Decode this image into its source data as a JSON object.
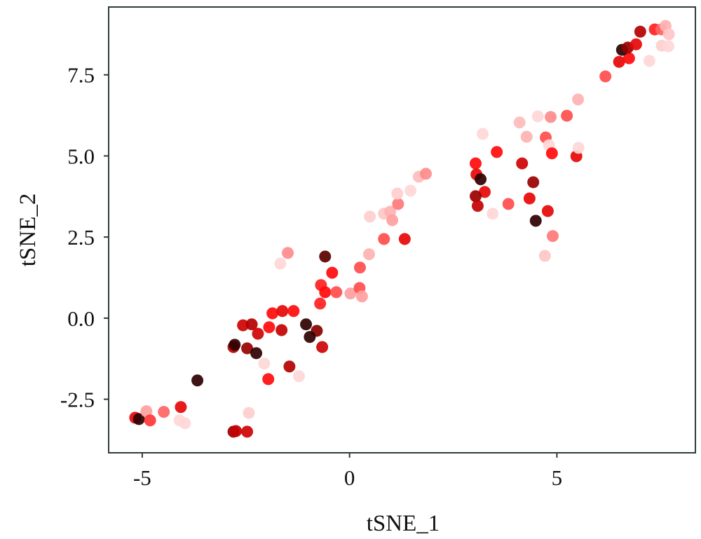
{
  "chart_data": {
    "type": "scatter",
    "title": "",
    "xlabel": "tSNE_1",
    "ylabel": "tSNE_2",
    "xlim": [
      -5.81,
      8.34
    ],
    "ylim": [
      -4.15,
      9.59
    ],
    "grid": false,
    "legend": "none",
    "colormap": "Reds",
    "xticks": [
      {
        "value": -5,
        "label": "-5"
      },
      {
        "value": 0,
        "label": "0"
      },
      {
        "value": 5,
        "label": "5"
      }
    ],
    "yticks": [
      {
        "value": -2.5,
        "label": "-2.5"
      },
      {
        "value": 0,
        "label": "0.0"
      },
      {
        "value": 2.5,
        "label": "2.5"
      },
      {
        "value": 5,
        "label": "5.0"
      },
      {
        "value": 7.5,
        "label": "7.5"
      }
    ],
    "points": [
      [
        -5.17,
        -3.07,
        0.75
      ],
      [
        -5.08,
        -3.11,
        1.0
      ],
      [
        -4.9,
        -2.87,
        0.35
      ],
      [
        -4.81,
        -3.15,
        0.6
      ],
      [
        -4.48,
        -2.89,
        0.5
      ],
      [
        -4.07,
        -2.74,
        0.75
      ],
      [
        -4.1,
        -3.15,
        0.1
      ],
      [
        -3.97,
        -3.24,
        0.1
      ],
      [
        -3.67,
        -1.92,
        1.0
      ],
      [
        -2.8,
        -3.5,
        0.88
      ],
      [
        -2.74,
        -3.48,
        0.82
      ],
      [
        -2.47,
        -3.5,
        0.8
      ],
      [
        -2.43,
        -2.92,
        0.15
      ],
      [
        -2.8,
        -0.89,
        0.85
      ],
      [
        -2.77,
        -0.82,
        1.0
      ],
      [
        -2.47,
        -0.93,
        0.88
      ],
      [
        -2.25,
        -1.08,
        1.0
      ],
      [
        -2.57,
        -0.22,
        0.8
      ],
      [
        -2.36,
        -0.19,
        0.85
      ],
      [
        -2.21,
        -0.48,
        0.8
      ],
      [
        -1.94,
        -0.28,
        0.7
      ],
      [
        -1.64,
        -0.37,
        0.82
      ],
      [
        -1.05,
        -0.19,
        1.0
      ],
      [
        -0.79,
        -0.39,
        0.9
      ],
      [
        -0.96,
        -0.58,
        1.0
      ],
      [
        -0.66,
        -0.89,
        0.8
      ],
      [
        -2.06,
        -1.4,
        0.1
      ],
      [
        -1.45,
        -1.49,
        0.85
      ],
      [
        -1.22,
        -1.79,
        0.1
      ],
      [
        -1.96,
        -1.88,
        0.7
      ],
      [
        -1.86,
        0.15,
        0.7
      ],
      [
        -1.62,
        0.22,
        0.75
      ],
      [
        -1.35,
        0.22,
        0.7
      ],
      [
        -0.71,
        0.45,
        0.65
      ],
      [
        -0.69,
        1.02,
        0.65
      ],
      [
        -0.59,
        0.8,
        0.7
      ],
      [
        -0.32,
        0.8,
        0.55
      ],
      [
        0.02,
        0.76,
        0.35
      ],
      [
        -0.42,
        1.4,
        0.7
      ],
      [
        -0.59,
        1.9,
        0.95
      ],
      [
        -1.49,
        2.01,
        0.4
      ],
      [
        -1.67,
        1.68,
        0.1
      ],
      [
        0.24,
        0.93,
        0.55
      ],
      [
        0.3,
        0.67,
        0.35
      ],
      [
        0.25,
        1.56,
        0.55
      ],
      [
        0.47,
        1.97,
        0.3
      ],
      [
        0.83,
        2.44,
        0.55
      ],
      [
        1.33,
        2.44,
        0.75
      ],
      [
        0.49,
        3.13,
        0.15
      ],
      [
        0.83,
        3.22,
        0.2
      ],
      [
        0.98,
        3.28,
        0.3
      ],
      [
        1.03,
        3.02,
        0.35
      ],
      [
        1.17,
        3.52,
        0.45
      ],
      [
        1.15,
        3.84,
        0.15
      ],
      [
        1.47,
        3.93,
        0.1
      ],
      [
        1.67,
        4.36,
        0.25
      ],
      [
        1.84,
        4.45,
        0.4
      ],
      [
        3.21,
        5.68,
        0.1
      ],
      [
        3.55,
        5.12,
        0.7
      ],
      [
        3.04,
        4.77,
        0.7
      ],
      [
        3.06,
        4.43,
        0.75
      ],
      [
        3.16,
        4.28,
        1.0
      ],
      [
        3.26,
        3.89,
        0.75
      ],
      [
        3.04,
        3.76,
        0.88
      ],
      [
        3.09,
        3.46,
        0.82
      ],
      [
        3.45,
        3.22,
        0.1
      ],
      [
        3.83,
        3.52,
        0.55
      ],
      [
        4.16,
        4.77,
        0.8
      ],
      [
        4.43,
        4.19,
        0.88
      ],
      [
        4.34,
        3.69,
        0.75
      ],
      [
        4.78,
        3.3,
        0.75
      ],
      [
        4.49,
        3.0,
        1.0
      ],
      [
        4.9,
        2.53,
        0.45
      ],
      [
        4.71,
        1.92,
        0.2
      ],
      [
        4.1,
        6.03,
        0.25
      ],
      [
        4.54,
        6.22,
        0.1
      ],
      [
        4.85,
        6.2,
        0.4
      ],
      [
        5.24,
        6.24,
        0.55
      ],
      [
        4.27,
        5.59,
        0.3
      ],
      [
        4.73,
        5.57,
        0.55
      ],
      [
        4.81,
        5.33,
        0.1
      ],
      [
        4.88,
        5.08,
        0.7
      ],
      [
        5.47,
        4.99,
        0.75
      ],
      [
        5.52,
        5.25,
        0.1
      ],
      [
        5.51,
        6.74,
        0.3
      ],
      [
        6.17,
        7.45,
        0.55
      ],
      [
        6.5,
        7.9,
        0.75
      ],
      [
        6.74,
        8.01,
        0.7
      ],
      [
        6.57,
        8.27,
        1.0
      ],
      [
        6.71,
        8.34,
        0.88
      ],
      [
        6.91,
        8.44,
        0.75
      ],
      [
        7.01,
        8.83,
        0.85
      ],
      [
        7.36,
        8.9,
        0.65
      ],
      [
        7.52,
        8.9,
        0.5
      ],
      [
        7.62,
        9.01,
        0.3
      ],
      [
        7.7,
        8.75,
        0.2
      ],
      [
        7.53,
        8.4,
        0.15
      ],
      [
        7.69,
        8.38,
        0.1
      ],
      [
        7.23,
        7.93,
        0.1
      ]
    ],
    "point_format": [
      "x",
      "y",
      "color_value"
    ],
    "colors": {
      "axis": "#2f3b3b",
      "low": "#ffeaea",
      "high": "#2e0000"
    }
  }
}
